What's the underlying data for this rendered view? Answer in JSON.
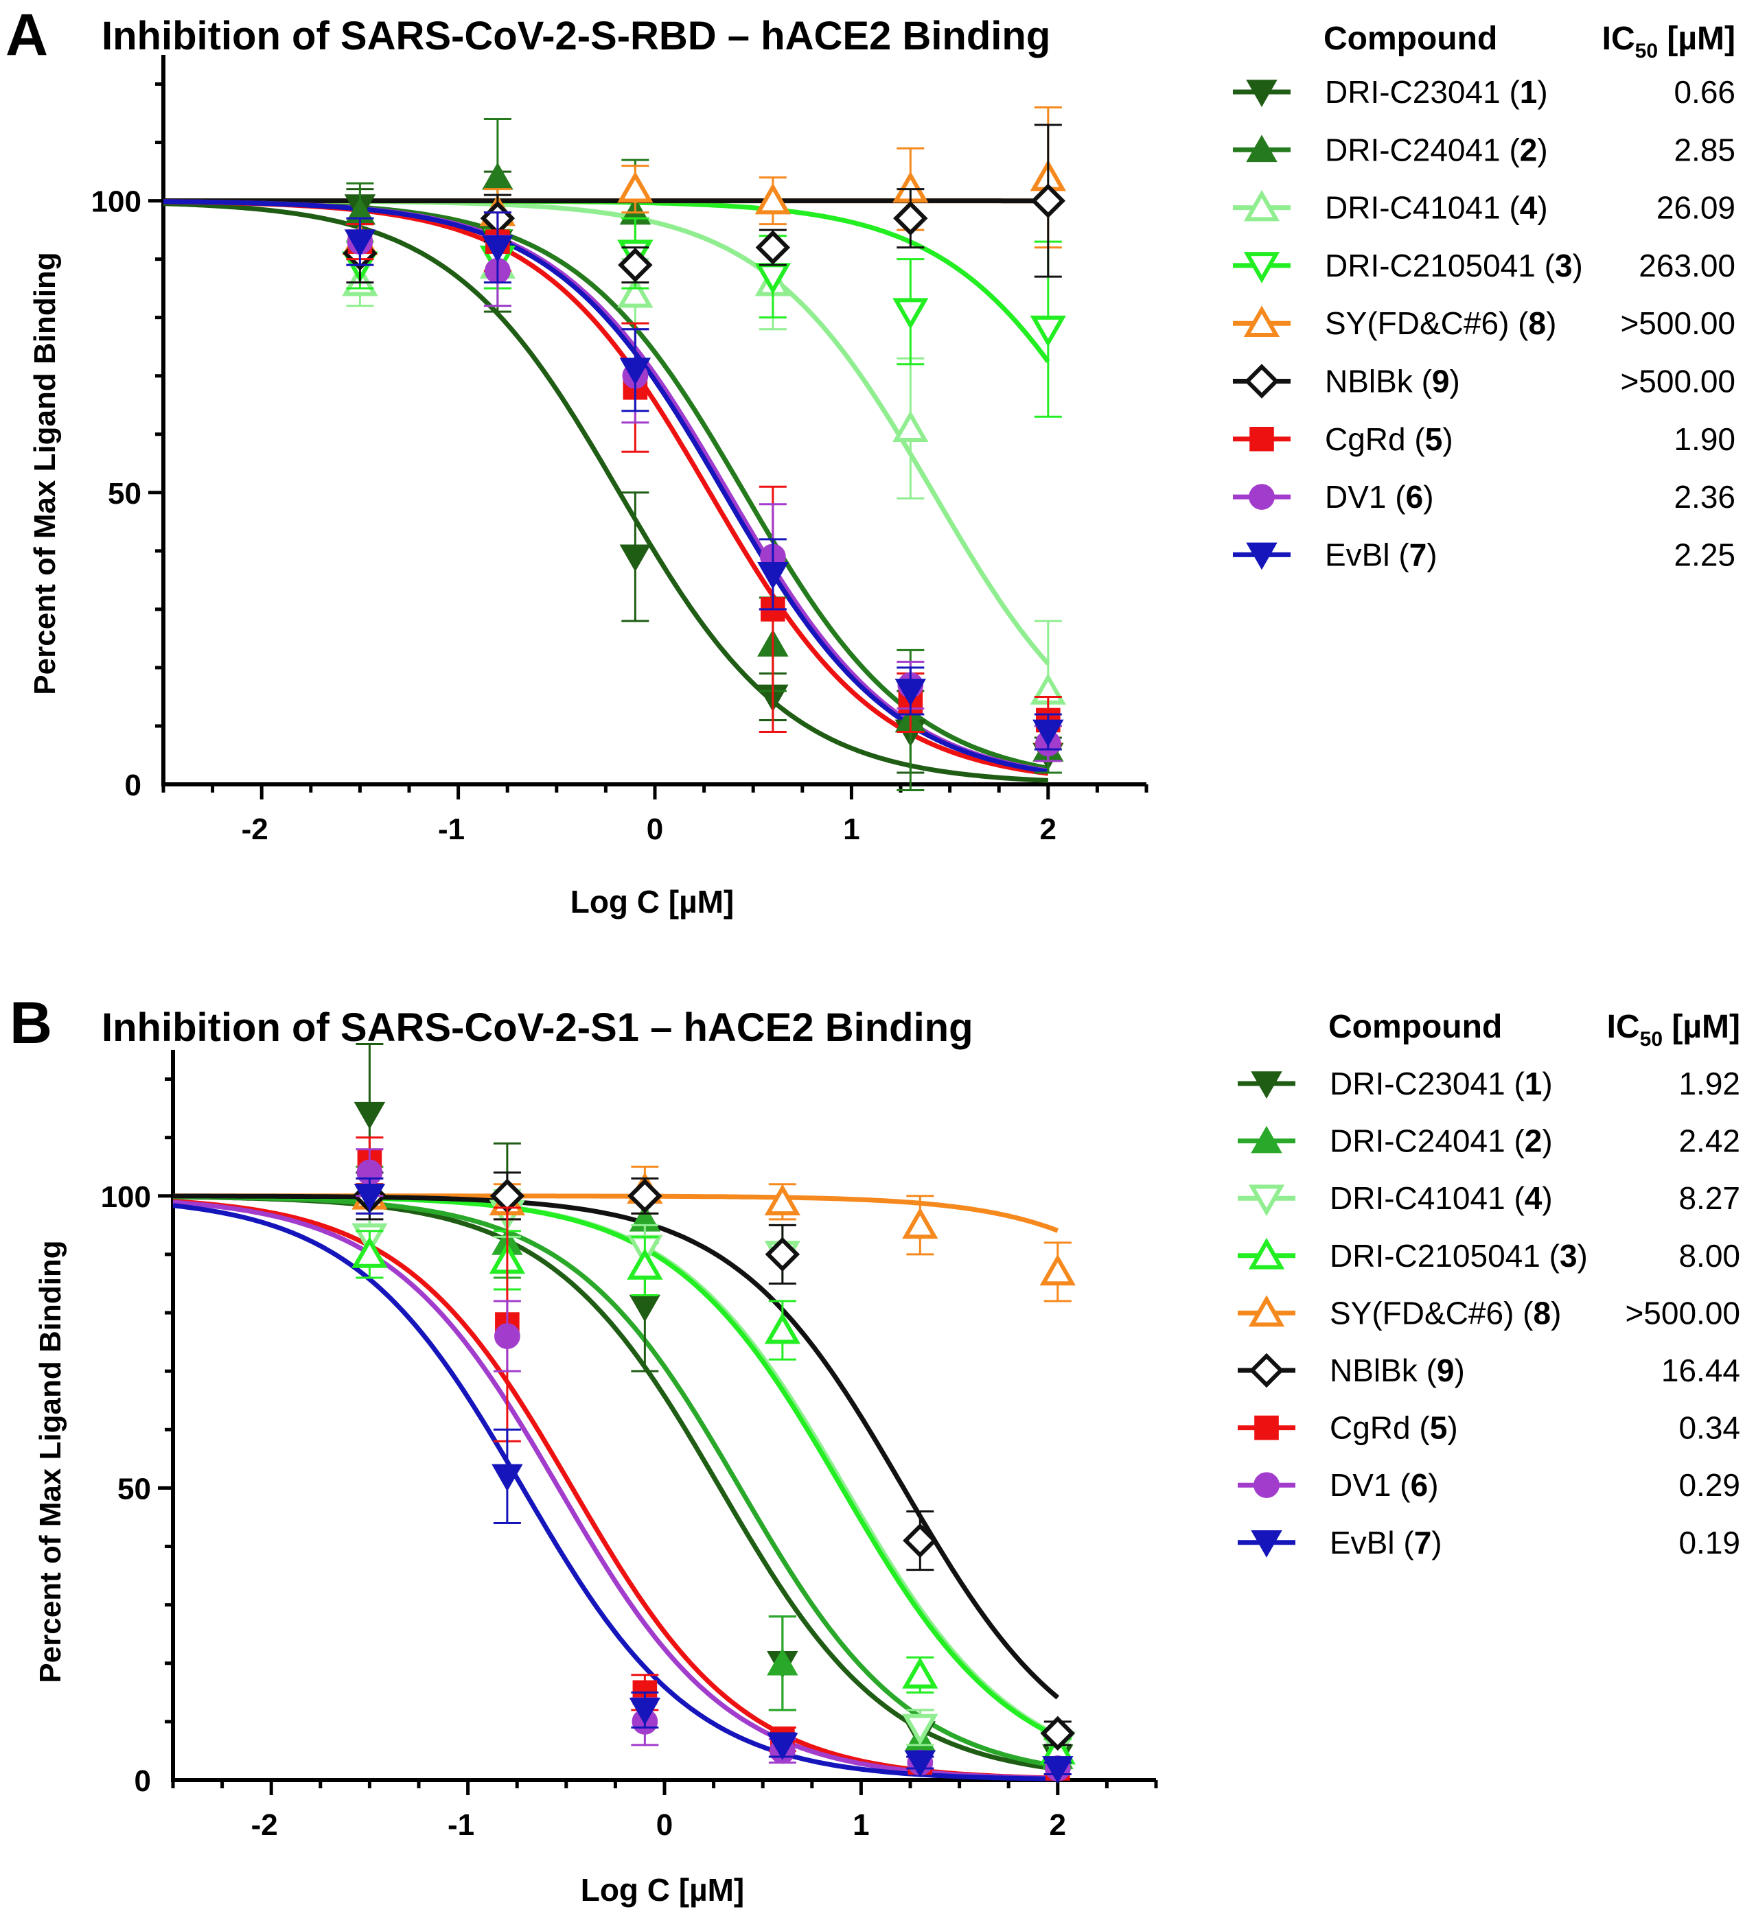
{
  "figure": {
    "panel_letters": [
      "A",
      "B"
    ]
  },
  "chart_data": [
    {
      "panel": "A",
      "type": "line",
      "title": "Inhibition of SARS-CoV-2-S-RBD – hACE2 Binding",
      "xlabel": "Log C [µM]",
      "ylabel": "Percent of Max Ligand Binding",
      "xlim": [
        -2.5,
        2.5
      ],
      "ylim": [
        0,
        125
      ],
      "xticks": [
        -2,
        -1,
        0,
        1,
        2
      ],
      "yticks": [
        0,
        50,
        100
      ],
      "legend": {
        "header_compound": "Compound",
        "header_ic50_main": "IC",
        "header_ic50_sub": "50",
        "header_ic50_unit": " [µM]",
        "placement": "right"
      },
      "x": [
        -1.5,
        -0.8,
        -0.1,
        0.6,
        1.3,
        2.0
      ],
      "series": [
        {
          "name": "DRI-C23041",
          "number": "1",
          "ic50_text": "0.66",
          "logIC50": -0.18,
          "color": "#1f5c14",
          "marker": "tri-down",
          "filled": true,
          "y": [
            99,
            93,
            39,
            15,
            9,
            5
          ],
          "err": [
            3,
            12,
            11,
            4,
            7,
            3
          ]
        },
        {
          "name": "DRI-C24041",
          "number": "2",
          "ic50_text": "2.85",
          "logIC50": 0.455,
          "color": "#247a1c",
          "marker": "tri-up",
          "filled": true,
          "y": [
            98,
            104,
            98,
            24,
            11,
            6
          ],
          "err": [
            5,
            10,
            9,
            8,
            12,
            4
          ]
        },
        {
          "name": "DRI-C41041",
          "number": "4",
          "ic50_text": "26.09",
          "logIC50": 1.416,
          "color": "#90ee90",
          "marker": "tri-up",
          "filled": false,
          "y": [
            86,
            89,
            84,
            86,
            61,
            16
          ],
          "err": [
            4,
            7,
            6,
            8,
            12,
            12
          ]
        },
        {
          "name": "DRI-C2105041",
          "number": "3",
          "ic50_text": "263.00",
          "logIC50": 2.42,
          "color": "#22ee22",
          "marker": "tri-down",
          "filled": false,
          "y": [
            89,
            90,
            91,
            87,
            81,
            78
          ],
          "err": [
            4,
            5,
            6,
            7,
            9,
            15
          ]
        },
        {
          "name": "SY(FD&C#6)",
          "number": "8",
          "ic50_text": ">500.00",
          "logIC50": 6.0,
          "color": "#f5891e",
          "marker": "tri-up",
          "filled": false,
          "y": [
            93,
            98,
            102,
            100,
            102,
            104
          ],
          "err": [
            3,
            4,
            4,
            4,
            7,
            12
          ]
        },
        {
          "name": "NBlBk",
          "number": "9",
          "ic50_text": ">500.00",
          "logIC50": 6.0,
          "color": "#111111",
          "marker": "diamond",
          "filled": false,
          "y": [
            91,
            97,
            89,
            92,
            97,
            100
          ],
          "err": [
            5,
            4,
            3,
            3,
            5,
            13
          ]
        },
        {
          "name": "CgRd",
          "number": "5",
          "ic50_text": "1.90",
          "logIC50": 0.279,
          "color": "#ee1111",
          "marker": "square",
          "filled": true,
          "y": [
            93,
            93,
            68,
            30,
            14,
            11
          ],
          "err": [
            3,
            5,
            11,
            21,
            5,
            4
          ]
        },
        {
          "name": "DV1",
          "number": "6",
          "ic50_text": "2.36",
          "logIC50": 0.373,
          "color": "#a23ccc",
          "marker": "circle",
          "filled": true,
          "y": [
            93,
            88,
            70,
            39,
            17,
            7
          ],
          "err": [
            4,
            6,
            8,
            9,
            4,
            3
          ]
        },
        {
          "name": "EvBl",
          "number": "7",
          "ic50_text": "2.25",
          "logIC50": 0.352,
          "color": "#1515bb",
          "marker": "tri-down",
          "filled": true,
          "y": [
            93,
            92,
            71,
            36,
            16,
            9
          ],
          "err": [
            4,
            6,
            7,
            6,
            4,
            3
          ]
        }
      ]
    },
    {
      "panel": "B",
      "type": "line",
      "title": "Inhibition of SARS-CoV-2-S1 – hACE2 Binding",
      "xlabel": "Log C [µM]",
      "ylabel": "Percent of Max Ligand Binding",
      "xlim": [
        -2.5,
        2.5
      ],
      "ylim": [
        0,
        125
      ],
      "xticks": [
        -2,
        -1,
        0,
        1,
        2
      ],
      "yticks": [
        0,
        50,
        100
      ],
      "legend": {
        "header_compound": "Compound",
        "header_ic50_main": "IC",
        "header_ic50_sub": "50",
        "header_ic50_unit": " [µM]",
        "placement": "right"
      },
      "x": [
        -1.5,
        -0.8,
        -0.1,
        0.6,
        1.3,
        2.0
      ],
      "series": [
        {
          "name": "DRI-C23041",
          "number": "1",
          "ic50_text": "1.92",
          "logIC50": 0.283,
          "color": "#1f5c14",
          "marker": "tri-down",
          "filled": true,
          "y": [
            114,
            98,
            81,
            20,
            8,
            4
          ],
          "err": [
            12,
            11,
            11,
            8,
            4,
            3
          ]
        },
        {
          "name": "DRI-C24041",
          "number": "2",
          "ic50_text": "2.42",
          "logIC50": 0.384,
          "color": "#2aa82a",
          "marker": "tri-up",
          "filled": true,
          "y": [
            100,
            92,
            96,
            20,
            7,
            4
          ],
          "err": [
            5,
            6,
            4,
            8,
            3,
            2
          ]
        },
        {
          "name": "DRI-C41041",
          "number": "4",
          "ic50_text": "8.27",
          "logIC50": 0.918,
          "color": "#90ee90",
          "marker": "tri-down",
          "filled": false,
          "y": [
            93,
            97,
            91,
            90,
            9,
            6
          ],
          "err": [
            4,
            4,
            4,
            5,
            3,
            2
          ]
        },
        {
          "name": "DRI-C2105041",
          "number": "3",
          "ic50_text": "8.00",
          "logIC50": 0.903,
          "color": "#22ee22",
          "marker": "tri-up",
          "filled": false,
          "y": [
            90,
            89,
            88,
            77,
            18,
            5
          ],
          "err": [
            4,
            5,
            5,
            5,
            3,
            2
          ]
        },
        {
          "name": "SY(FD&C#6)",
          "number": "8",
          "ic50_text": ">500.00",
          "logIC50": 3.2,
          "color": "#f5891e",
          "marker": "tri-up",
          "filled": false,
          "y": [
            100,
            99,
            101,
            99,
            95,
            87
          ],
          "err": [
            3,
            3,
            4,
            3,
            5,
            5
          ]
        },
        {
          "name": "NBlBk",
          "number": "9",
          "ic50_text": "16.44",
          "logIC50": 1.216,
          "color": "#111111",
          "marker": "diamond",
          "filled": false,
          "y": [
            100,
            100,
            100,
            90,
            41,
            8
          ],
          "err": [
            4,
            4,
            3,
            5,
            5,
            2
          ]
        },
        {
          "name": "CgRd",
          "number": "5",
          "ic50_text": "0.34",
          "logIC50": -0.469,
          "color": "#ee1111",
          "marker": "square",
          "filled": true,
          "y": [
            106,
            78,
            15,
            7,
            3,
            2
          ],
          "err": [
            4,
            20,
            3,
            2,
            1,
            1
          ]
        },
        {
          "name": "DV1",
          "number": "6",
          "ic50_text": "0.29",
          "logIC50": -0.538,
          "color": "#a23ccc",
          "marker": "circle",
          "filled": true,
          "y": [
            104,
            76,
            10,
            5,
            3,
            2
          ],
          "err": [
            4,
            6,
            4,
            2,
            1,
            1
          ]
        },
        {
          "name": "EvBl",
          "number": "7",
          "ic50_text": "0.19",
          "logIC50": -0.721,
          "color": "#1515bb",
          "marker": "tri-down",
          "filled": true,
          "y": [
            100,
            52,
            12,
            6,
            3,
            2
          ],
          "err": [
            3,
            8,
            3,
            2,
            1,
            1
          ]
        }
      ]
    }
  ]
}
